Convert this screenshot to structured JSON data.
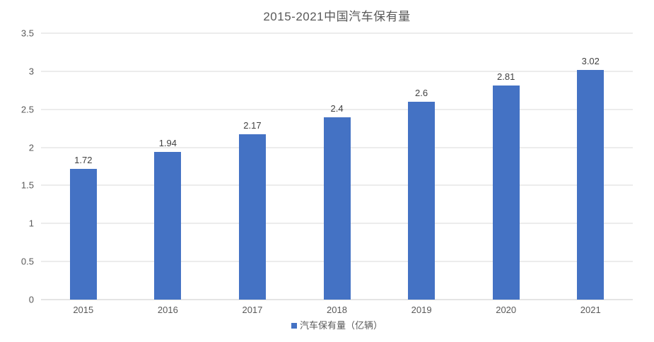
{
  "chart_data": {
    "type": "bar",
    "title": "2015-2021中国汽车保有量",
    "categories": [
      "2015",
      "2016",
      "2017",
      "2018",
      "2019",
      "2020",
      "2021"
    ],
    "values": [
      1.72,
      1.94,
      2.17,
      2.4,
      2.6,
      2.81,
      3.02
    ],
    "value_labels": [
      "1.72",
      "1.94",
      "2.17",
      "2.4",
      "2.6",
      "2.81",
      "3.02"
    ],
    "series": [
      {
        "name": "汽车保有量（亿辆）",
        "values": [
          1.72,
          1.94,
          2.17,
          2.4,
          2.6,
          2.81,
          3.02
        ]
      }
    ],
    "xlabel": "",
    "ylabel": "",
    "ylim": [
      0,
      3.5
    ],
    "ytick_interval": 0.5,
    "yticks": [
      "0",
      "0.5",
      "1",
      "1.5",
      "2",
      "2.5",
      "3",
      "3.5"
    ],
    "grid": true,
    "legend_position": "bottom",
    "legend": [
      {
        "label": "汽车保有量（亿辆）",
        "color": "#4472C4"
      }
    ],
    "colors": {
      "bar": "#4472C4",
      "grid": "#D9D9D9",
      "axis_line": "#C8C8C8",
      "axis_text": "#595959",
      "title": "#595959",
      "data_label": "#404040",
      "background": "#FFFFFF"
    }
  }
}
